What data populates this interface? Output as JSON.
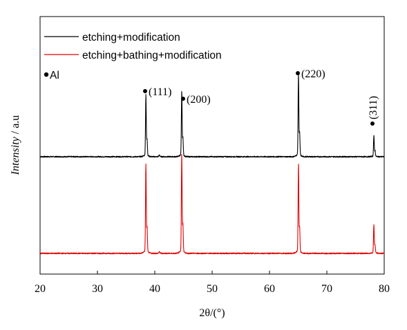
{
  "chart_data": {
    "type": "line",
    "xlabel": "2θ/(°)",
    "ylabel_italic": "Intensity",
    "ylabel_rest": " / a.u",
    "xlim": [
      20,
      80
    ],
    "xticks": [
      "20",
      "30",
      "40",
      "50",
      "60",
      "70",
      "80"
    ],
    "legend_position": "top-left",
    "series": [
      {
        "name": "etching+modification",
        "color": "#000000",
        "baseline": 1.0,
        "peaks": [
          {
            "x": 38.45,
            "height": 0.62
          },
          {
            "x": 44.7,
            "height": 0.66
          },
          {
            "x": 65.05,
            "height": 0.83
          },
          {
            "x": 78.2,
            "height": 0.21
          }
        ]
      },
      {
        "name": "etching+bathing+modification",
        "color": "#e00000",
        "baseline": 0.0,
        "peaks": [
          {
            "x": 38.45,
            "height": 0.9
          },
          {
            "x": 44.7,
            "height": 1.0
          },
          {
            "x": 65.05,
            "height": 0.9
          },
          {
            "x": 78.2,
            "height": 0.29
          }
        ]
      }
    ],
    "phase_marker": {
      "label": "Al"
    },
    "annotations": [
      {
        "label": "(111)",
        "x": 38.45
      },
      {
        "label": "(200)",
        "x": 44.7
      },
      {
        "label": "(220)",
        "x": 65.05
      },
      {
        "label": "(311)",
        "x": 78.2,
        "rotated": true
      }
    ]
  }
}
